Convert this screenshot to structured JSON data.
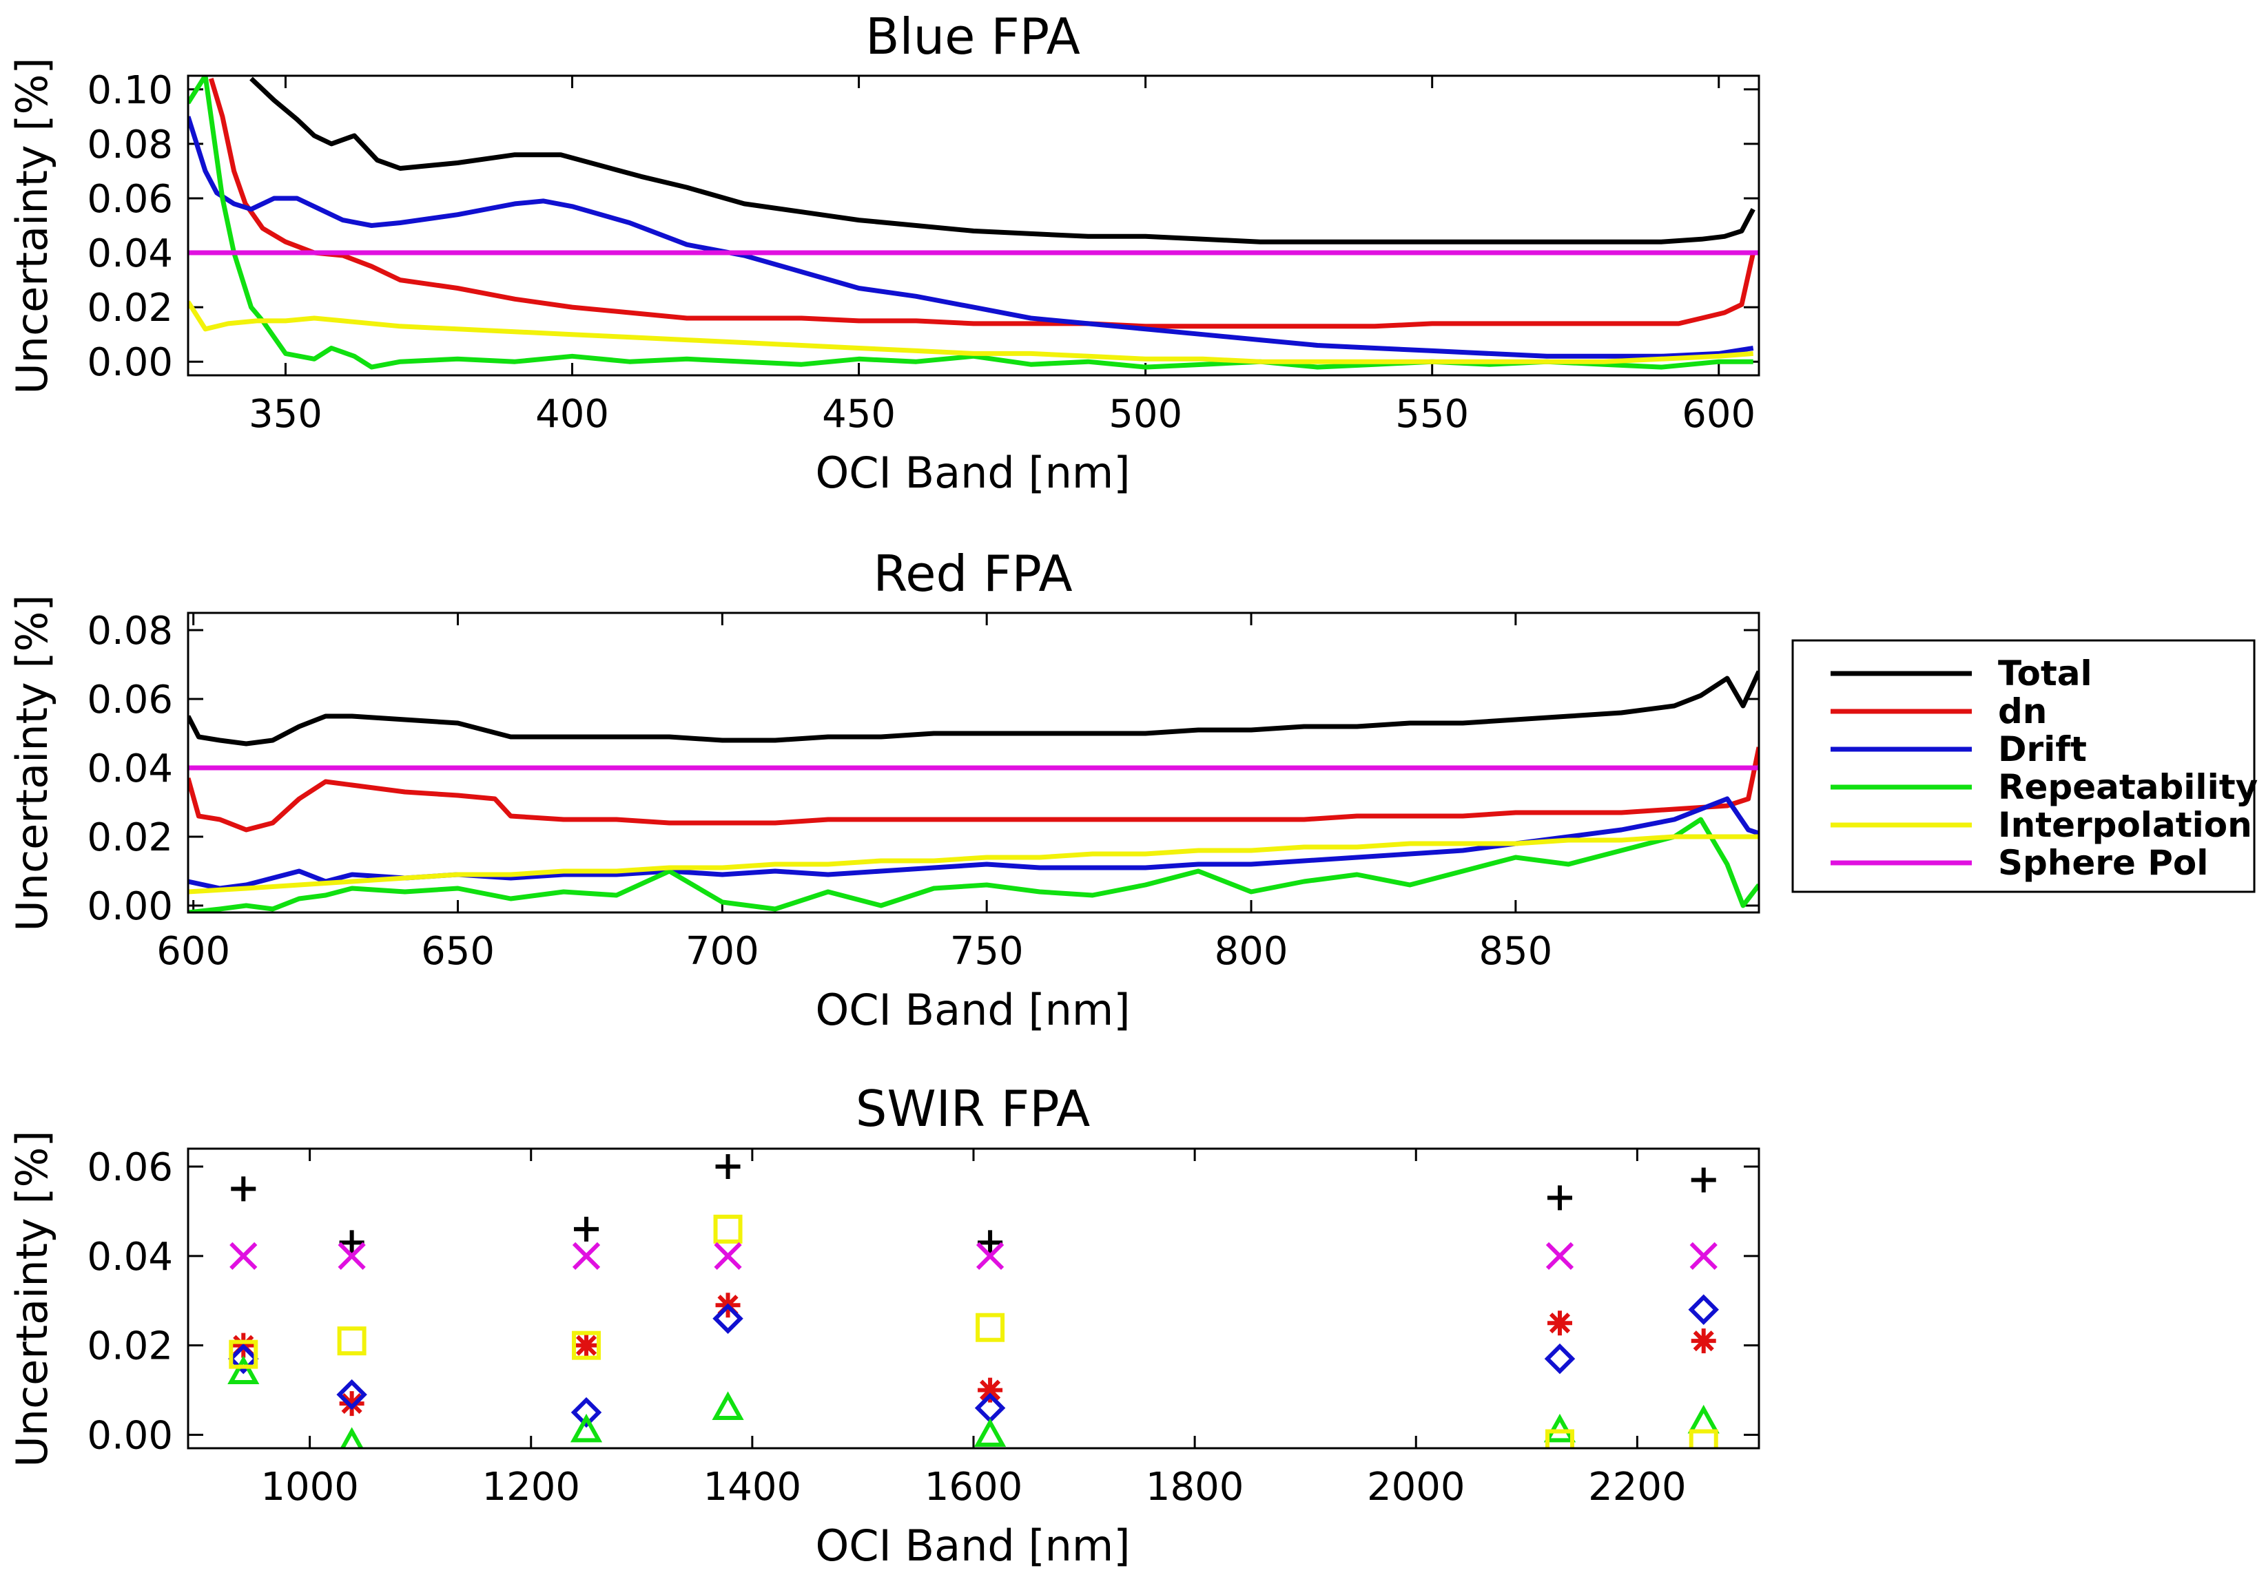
{
  "legend": {
    "items": [
      {
        "label": "Total",
        "color": "#000000"
      },
      {
        "label": "dn",
        "color": "#e01010"
      },
      {
        "label": "Drift",
        "color": "#1010d0"
      },
      {
        "label": "Repeatability",
        "color": "#10e010"
      },
      {
        "label": "Interpolation",
        "color": "#f2f20a"
      },
      {
        "label": "Sphere Pol",
        "color": "#e010e0"
      }
    ]
  },
  "chart_data": [
    {
      "type": "line",
      "title": "Blue FPA",
      "xlabel": "OCI Band [nm]",
      "ylabel": "Uncertainty [%]",
      "xlim": [
        333,
        607
      ],
      "ylim": [
        -0.005,
        0.105
      ],
      "xticks": [
        350,
        400,
        450,
        500,
        550,
        600
      ],
      "yticks": [
        "0.00",
        "0.02",
        "0.04",
        "0.06",
        "0.08",
        "0.10"
      ],
      "series": [
        {
          "name": "Total",
          "color": "#000000",
          "x": [
            344,
            348,
            352,
            355,
            358,
            362,
            366,
            370,
            380,
            390,
            398,
            405,
            412,
            420,
            430,
            440,
            450,
            460,
            470,
            480,
            490,
            500,
            510,
            520,
            530,
            540,
            550,
            560,
            570,
            580,
            590,
            597,
            601,
            604,
            606
          ],
          "y": [
            0.104,
            0.096,
            0.089,
            0.083,
            0.08,
            0.083,
            0.074,
            0.071,
            0.073,
            0.076,
            0.076,
            0.072,
            0.068,
            0.064,
            0.058,
            0.055,
            0.052,
            0.05,
            0.048,
            0.047,
            0.046,
            0.046,
            0.045,
            0.044,
            0.044,
            0.044,
            0.044,
            0.044,
            0.044,
            0.044,
            0.044,
            0.045,
            0.046,
            0.048,
            0.056
          ]
        },
        {
          "name": "dn",
          "color": "#e01010",
          "x": [
            337,
            339,
            341,
            343,
            346,
            350,
            355,
            360,
            365,
            370,
            380,
            390,
            400,
            410,
            420,
            430,
            440,
            450,
            460,
            470,
            480,
            490,
            500,
            510,
            520,
            530,
            540,
            550,
            560,
            570,
            580,
            590,
            593,
            597,
            601,
            604,
            606
          ],
          "y": [
            0.104,
            0.09,
            0.07,
            0.058,
            0.049,
            0.044,
            0.04,
            0.039,
            0.035,
            0.03,
            0.027,
            0.023,
            0.02,
            0.018,
            0.016,
            0.016,
            0.016,
            0.015,
            0.015,
            0.014,
            0.014,
            0.014,
            0.013,
            0.013,
            0.013,
            0.013,
            0.013,
            0.014,
            0.014,
            0.014,
            0.014,
            0.014,
            0.014,
            0.016,
            0.018,
            0.021,
            0.04
          ]
        },
        {
          "name": "Drift",
          "color": "#1010d0",
          "x": [
            333,
            336,
            338,
            341,
            344,
            348,
            352,
            356,
            360,
            365,
            370,
            380,
            390,
            395,
            400,
            410,
            420,
            430,
            440,
            450,
            460,
            470,
            480,
            490,
            500,
            510,
            520,
            530,
            540,
            550,
            560,
            570,
            580,
            590,
            600,
            606
          ],
          "y": [
            0.09,
            0.07,
            0.062,
            0.058,
            0.056,
            0.06,
            0.06,
            0.056,
            0.052,
            0.05,
            0.051,
            0.054,
            0.058,
            0.059,
            0.057,
            0.051,
            0.043,
            0.039,
            0.033,
            0.027,
            0.024,
            0.02,
            0.016,
            0.014,
            0.012,
            0.01,
            0.008,
            0.006,
            0.005,
            0.004,
            0.003,
            0.002,
            0.002,
            0.002,
            0.003,
            0.005
          ]
        },
        {
          "name": "Repeatability",
          "color": "#10e010",
          "x": [
            333,
            336,
            339,
            341,
            344,
            346,
            350,
            355,
            358,
            362,
            365,
            370,
            380,
            390,
            400,
            410,
            420,
            430,
            440,
            450,
            460,
            470,
            480,
            490,
            500,
            510,
            520,
            530,
            540,
            550,
            560,
            570,
            580,
            590,
            600,
            606
          ],
          "y": [
            0.095,
            0.105,
            0.06,
            0.04,
            0.02,
            0.015,
            0.003,
            0.001,
            0.005,
            0.002,
            -0.002,
            0.0,
            0.001,
            0.0,
            0.002,
            0.0,
            0.001,
            0.0,
            -0.001,
            0.001,
            0.0,
            0.002,
            -0.001,
            0.0,
            -0.002,
            -0.001,
            0.0,
            -0.002,
            -0.001,
            0.0,
            -0.001,
            0.0,
            -0.001,
            -0.002,
            0.0,
            0.0
          ]
        },
        {
          "name": "Interpolation",
          "color": "#f2f20a",
          "x": [
            333,
            336,
            340,
            345,
            350,
            355,
            360,
            370,
            380,
            390,
            400,
            410,
            420,
            430,
            440,
            450,
            460,
            470,
            480,
            490,
            500,
            510,
            520,
            530,
            540,
            550,
            560,
            570,
            580,
            590,
            600,
            606
          ],
          "y": [
            0.022,
            0.012,
            0.014,
            0.015,
            0.015,
            0.016,
            0.015,
            0.013,
            0.012,
            0.011,
            0.01,
            0.009,
            0.008,
            0.007,
            0.006,
            0.005,
            0.004,
            0.003,
            0.003,
            0.002,
            0.001,
            0.001,
            0.0,
            0.0,
            0.0,
            0.0,
            0.0,
            0.0,
            0.0,
            0.001,
            0.002,
            0.003
          ]
        },
        {
          "name": "Sphere Pol",
          "color": "#e010e0",
          "x": [
            333,
            607
          ],
          "y": [
            0.04,
            0.04
          ]
        }
      ]
    },
    {
      "type": "line",
      "title": "Red FPA",
      "xlabel": "OCI Band [nm]",
      "ylabel": "Uncertainty [%]",
      "xlim": [
        599,
        896
      ],
      "ylim": [
        -0.002,
        0.085
      ],
      "xticks": [
        600,
        650,
        700,
        750,
        800,
        850
      ],
      "yticks": [
        "0.00",
        "0.02",
        "0.04",
        "0.06",
        "0.08"
      ],
      "series": [
        {
          "name": "Total",
          "color": "#000000",
          "x": [
            599,
            601,
            605,
            610,
            615,
            620,
            625,
            630,
            640,
            650,
            660,
            670,
            680,
            690,
            700,
            710,
            720,
            730,
            740,
            750,
            760,
            770,
            780,
            790,
            800,
            810,
            820,
            830,
            840,
            850,
            860,
            870,
            880,
            885,
            890,
            893,
            896
          ],
          "y": [
            0.055,
            0.049,
            0.048,
            0.047,
            0.048,
            0.052,
            0.055,
            0.055,
            0.054,
            0.053,
            0.049,
            0.049,
            0.049,
            0.049,
            0.048,
            0.048,
            0.049,
            0.049,
            0.05,
            0.05,
            0.05,
            0.05,
            0.05,
            0.051,
            0.051,
            0.052,
            0.052,
            0.053,
            0.053,
            0.054,
            0.055,
            0.056,
            0.058,
            0.061,
            0.066,
            0.058,
            0.068
          ]
        },
        {
          "name": "dn",
          "color": "#e01010",
          "x": [
            599,
            601,
            605,
            610,
            615,
            620,
            625,
            630,
            640,
            650,
            657,
            660,
            670,
            680,
            690,
            700,
            710,
            720,
            730,
            740,
            750,
            760,
            770,
            780,
            790,
            800,
            810,
            820,
            830,
            840,
            850,
            860,
            870,
            880,
            890,
            894,
            896
          ],
          "y": [
            0.037,
            0.026,
            0.025,
            0.022,
            0.024,
            0.031,
            0.036,
            0.035,
            0.033,
            0.032,
            0.031,
            0.026,
            0.025,
            0.025,
            0.024,
            0.024,
            0.024,
            0.025,
            0.025,
            0.025,
            0.025,
            0.025,
            0.025,
            0.025,
            0.025,
            0.025,
            0.025,
            0.026,
            0.026,
            0.026,
            0.027,
            0.027,
            0.027,
            0.028,
            0.029,
            0.031,
            0.046
          ]
        },
        {
          "name": "Drift",
          "color": "#1010d0",
          "x": [
            599,
            605,
            610,
            615,
            620,
            625,
            630,
            640,
            650,
            660,
            670,
            680,
            690,
            700,
            710,
            720,
            730,
            740,
            750,
            760,
            770,
            780,
            790,
            800,
            810,
            820,
            830,
            840,
            850,
            860,
            870,
            880,
            890,
            894,
            896
          ],
          "y": [
            0.007,
            0.005,
            0.006,
            0.008,
            0.01,
            0.007,
            0.009,
            0.008,
            0.009,
            0.008,
            0.009,
            0.009,
            0.01,
            0.009,
            0.01,
            0.009,
            0.01,
            0.011,
            0.012,
            0.011,
            0.011,
            0.011,
            0.012,
            0.012,
            0.013,
            0.014,
            0.015,
            0.016,
            0.018,
            0.02,
            0.022,
            0.025,
            0.031,
            0.022,
            0.021
          ]
        },
        {
          "name": "Repeatability",
          "color": "#10e010",
          "x": [
            599,
            605,
            610,
            615,
            620,
            625,
            630,
            640,
            650,
            660,
            670,
            680,
            690,
            700,
            710,
            720,
            730,
            740,
            750,
            760,
            770,
            780,
            790,
            800,
            810,
            820,
            830,
            840,
            850,
            860,
            870,
            880,
            885,
            890,
            893,
            896
          ],
          "y": [
            -0.002,
            -0.001,
            0.0,
            -0.001,
            0.002,
            0.003,
            0.005,
            0.004,
            0.005,
            0.002,
            0.004,
            0.003,
            0.01,
            0.001,
            -0.001,
            0.004,
            0.0,
            0.005,
            0.006,
            0.004,
            0.003,
            0.006,
            0.01,
            0.004,
            0.007,
            0.009,
            0.006,
            0.01,
            0.014,
            0.012,
            0.016,
            0.02,
            0.025,
            0.012,
            0.0,
            0.006
          ]
        },
        {
          "name": "Interpolation",
          "color": "#f2f20a",
          "x": [
            599,
            610,
            620,
            630,
            640,
            650,
            660,
            670,
            680,
            690,
            700,
            710,
            720,
            730,
            740,
            750,
            760,
            770,
            780,
            790,
            800,
            810,
            820,
            830,
            840,
            850,
            860,
            870,
            880,
            890,
            896
          ],
          "y": [
            0.004,
            0.005,
            0.006,
            0.007,
            0.008,
            0.009,
            0.009,
            0.01,
            0.01,
            0.011,
            0.011,
            0.012,
            0.012,
            0.013,
            0.013,
            0.014,
            0.014,
            0.015,
            0.015,
            0.016,
            0.016,
            0.017,
            0.017,
            0.018,
            0.018,
            0.018,
            0.019,
            0.019,
            0.02,
            0.02,
            0.02
          ]
        },
        {
          "name": "Sphere Pol",
          "color": "#e010e0",
          "x": [
            599,
            896
          ],
          "y": [
            0.04,
            0.04
          ]
        }
      ]
    },
    {
      "type": "scatter",
      "title": "SWIR FPA",
      "xlabel": "OCI Band [nm]",
      "ylabel": "Uncertainty [%]",
      "xlim": [
        890,
        2310
      ],
      "ylim": [
        -0.003,
        0.064
      ],
      "xticks": [
        1000,
        1200,
        1400,
        1600,
        1800,
        2000,
        2200
      ],
      "yticks": [
        "0.00",
        "0.02",
        "0.04",
        "0.06"
      ],
      "series": [
        {
          "name": "Total",
          "color": "#000000",
          "marker": "plus",
          "x": [
            940,
            1038,
            1250,
            1378,
            1615,
            2130,
            2260
          ],
          "y": [
            0.055,
            0.043,
            0.046,
            0.06,
            0.043,
            0.053,
            0.057
          ]
        },
        {
          "name": "dn",
          "color": "#e01010",
          "marker": "asterisk",
          "x": [
            940,
            1038,
            1250,
            1378,
            1615,
            2130,
            2260
          ],
          "y": [
            0.02,
            0.007,
            0.02,
            0.029,
            0.01,
            0.025,
            0.021
          ]
        },
        {
          "name": "Drift",
          "color": "#1010d0",
          "marker": "diamond",
          "x": [
            940,
            1038,
            1250,
            1378,
            1615,
            2130,
            2260
          ],
          "y": [
            0.017,
            0.009,
            0.005,
            0.026,
            0.006,
            0.017,
            0.028
          ]
        },
        {
          "name": "Repeatability",
          "color": "#10e010",
          "marker": "triangle",
          "x": [
            940,
            1038,
            1250,
            1378,
            1615,
            2130,
            2260
          ],
          "y": [
            0.014,
            -0.002,
            0.001,
            0.006,
            0.0,
            0.001,
            0.003
          ]
        },
        {
          "name": "Interpolation",
          "color": "#f2f20a",
          "marker": "square",
          "x": [
            940,
            1038,
            1250,
            1378,
            1615,
            2130,
            2260
          ],
          "y": [
            0.018,
            0.021,
            0.02,
            0.046,
            0.024,
            -0.002,
            -0.002
          ]
        },
        {
          "name": "Sphere Pol",
          "color": "#e010e0",
          "marker": "x",
          "x": [
            940,
            1038,
            1250,
            1378,
            1615,
            2130,
            2260
          ],
          "y": [
            0.04,
            0.04,
            0.04,
            0.04,
            0.04,
            0.04,
            0.04
          ]
        }
      ]
    }
  ]
}
